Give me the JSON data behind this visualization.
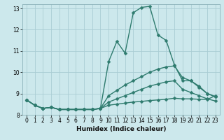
{
  "xlabel": "Humidex (Indice chaleur)",
  "ylabel": "",
  "background_color": "#cce8ec",
  "grid_color": "#aacdd4",
  "line_color": "#2e7b6e",
  "xlim": [
    -0.5,
    23.5
  ],
  "ylim": [
    8,
    13.2
  ],
  "xticks": [
    0,
    1,
    2,
    3,
    4,
    5,
    6,
    7,
    8,
    9,
    10,
    11,
    12,
    13,
    14,
    15,
    16,
    17,
    18,
    19,
    20,
    21,
    22,
    23
  ],
  "yticks": [
    8,
    9,
    10,
    11,
    12,
    13
  ],
  "series": [
    {
      "x": [
        0,
        1,
        2,
        3,
        4,
        5,
        6,
        7,
        8,
        9,
        10,
        11,
        12,
        13,
        14,
        15,
        16,
        17,
        18,
        19,
        20,
        21,
        22,
        23
      ],
      "y": [
        8.7,
        8.45,
        8.3,
        8.35,
        8.25,
        8.25,
        8.25,
        8.25,
        8.25,
        8.3,
        10.5,
        11.45,
        10.9,
        12.8,
        13.05,
        13.1,
        11.75,
        11.5,
        10.35,
        9.6,
        9.6,
        9.3,
        9.0,
        8.85
      ]
    },
    {
      "x": [
        0,
        1,
        2,
        3,
        4,
        5,
        6,
        7,
        8,
        9,
        10,
        11,
        12,
        13,
        14,
        15,
        16,
        17,
        18,
        19,
        20,
        21,
        22,
        23
      ],
      "y": [
        8.7,
        8.45,
        8.3,
        8.35,
        8.25,
        8.25,
        8.25,
        8.25,
        8.25,
        8.3,
        8.9,
        9.15,
        9.4,
        9.6,
        9.8,
        10.0,
        10.15,
        10.25,
        10.3,
        9.75,
        9.6,
        9.35,
        9.0,
        8.85
      ]
    },
    {
      "x": [
        0,
        1,
        2,
        3,
        4,
        5,
        6,
        7,
        8,
        9,
        10,
        11,
        12,
        13,
        14,
        15,
        16,
        17,
        18,
        19,
        20,
        21,
        22,
        23
      ],
      "y": [
        8.7,
        8.45,
        8.3,
        8.35,
        8.25,
        8.25,
        8.25,
        8.25,
        8.25,
        8.3,
        8.6,
        8.75,
        8.9,
        9.05,
        9.2,
        9.35,
        9.45,
        9.55,
        9.6,
        9.2,
        9.05,
        8.9,
        8.75,
        8.65
      ]
    },
    {
      "x": [
        0,
        1,
        2,
        3,
        4,
        5,
        6,
        7,
        8,
        9,
        10,
        11,
        12,
        13,
        14,
        15,
        16,
        17,
        18,
        19,
        20,
        21,
        22,
        23
      ],
      "y": [
        8.7,
        8.45,
        8.3,
        8.35,
        8.25,
        8.25,
        8.25,
        8.25,
        8.25,
        8.3,
        8.45,
        8.5,
        8.55,
        8.6,
        8.63,
        8.67,
        8.7,
        8.73,
        8.78,
        8.75,
        8.75,
        8.73,
        8.72,
        8.9
      ]
    }
  ],
  "marker": "D",
  "markersize": 2.5,
  "linewidth": 1.0
}
